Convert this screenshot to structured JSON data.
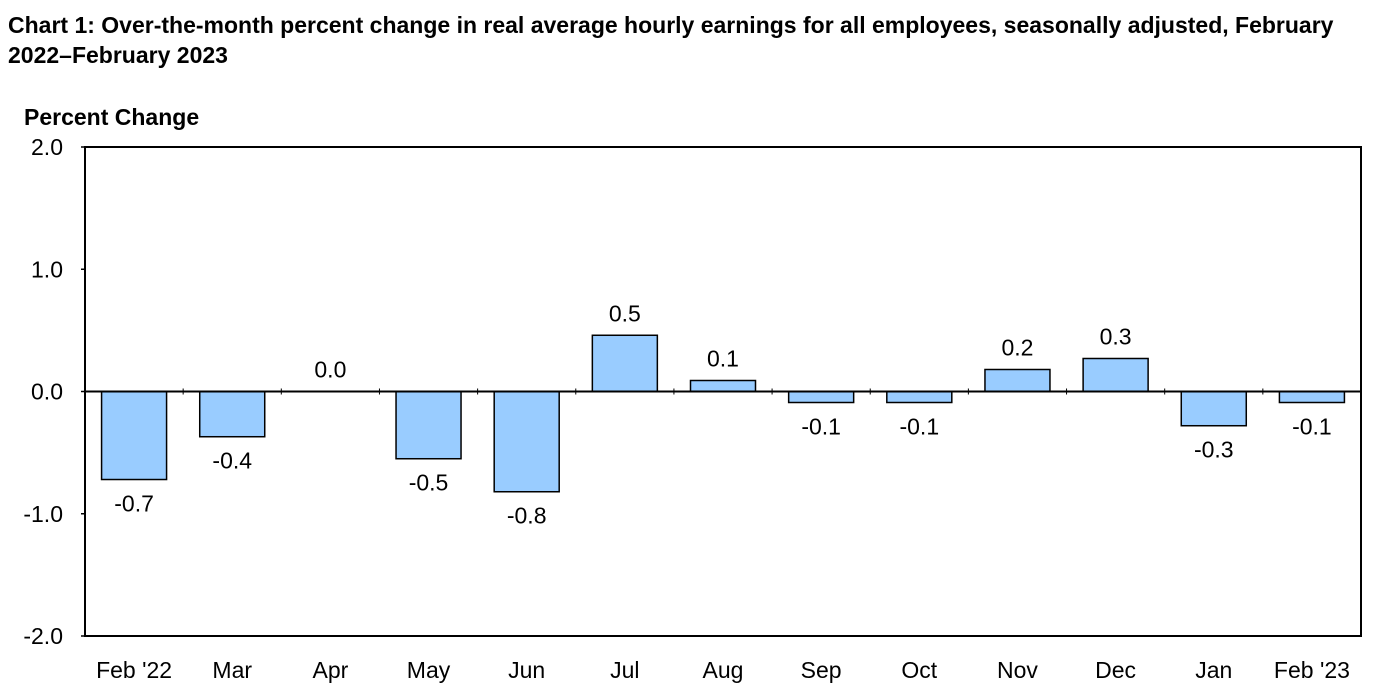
{
  "chart_data": {
    "type": "bar",
    "title": "Chart 1: Over-the-month percent change in real average hourly earnings for all employees, seasonally adjusted, February 2022–February 2023",
    "ylabel": "Percent Change",
    "xlabel": "",
    "categories": [
      "Feb '22",
      "Mar",
      "Apr",
      "May",
      "Jun",
      "Jul",
      "Aug",
      "Sep",
      "Oct",
      "Nov",
      "Dec",
      "Jan",
      "Feb '23"
    ],
    "values": [
      -0.72,
      -0.37,
      0.0,
      -0.55,
      -0.82,
      0.46,
      0.09,
      -0.09,
      -0.09,
      0.18,
      0.27,
      -0.28,
      -0.09
    ],
    "data_labels": [
      "-0.7",
      "-0.4",
      "0.0",
      "-0.5",
      "-0.8",
      "0.5",
      "0.1",
      "-0.1",
      "-0.1",
      "0.2",
      "0.3",
      "-0.3",
      "-0.1"
    ],
    "ylim": [
      -2.0,
      2.0
    ],
    "yticks": [
      2.0,
      1.0,
      0.0,
      -1.0,
      -2.0
    ],
    "ytick_labels": [
      "2.0",
      "1.0",
      "0.0",
      "-1.0",
      "-2.0"
    ],
    "grid": false,
    "legend": "none",
    "colors": {
      "bar_fill": "#99ccff",
      "bar_stroke": "#000000",
      "axis": "#000000",
      "text": "#000000"
    }
  }
}
